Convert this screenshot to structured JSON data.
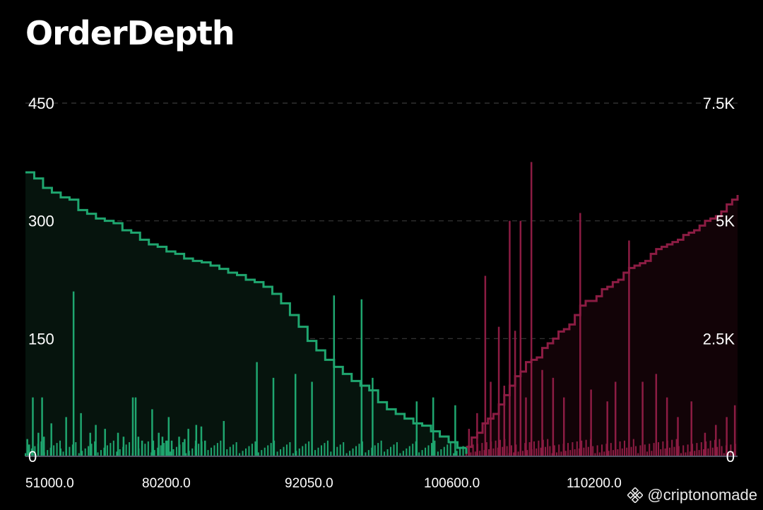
{
  "title": "OrderDepth",
  "watermark": {
    "handle": "@criptonomade",
    "icon": "binance-diamond-icon"
  },
  "chart_data": {
    "type": "bar+area",
    "title": "OrderDepth",
    "left_axis": {
      "ticks": [
        0,
        150,
        300,
        450
      ],
      "labels": [
        "0",
        "150",
        "300",
        "450"
      ],
      "range": [
        0,
        450
      ]
    },
    "right_axis": {
      "ticks": [
        0,
        2500,
        5000,
        7500
      ],
      "labels": [
        "0",
        "2.5K",
        "5K",
        "7.5K"
      ],
      "range": [
        0,
        7500
      ]
    },
    "x_axis": {
      "labels": [
        "51000.0",
        "80200.0",
        "92050.0",
        "100600.0",
        "110200.0"
      ]
    },
    "grid": "horizontal-dashed",
    "colors": {
      "bid": "#1fa66f",
      "ask": "#8c1c43",
      "bid_fill": "#06140d",
      "ask_fill": "#120307",
      "grid": "#3a3a3a"
    },
    "series": [
      {
        "name": "bid-cumulative-depth",
        "side": "bid",
        "axis": "right",
        "points": [
          [
            0,
            6030
          ],
          [
            0.02,
            5900
          ],
          [
            0.04,
            5700
          ],
          [
            0.06,
            5600
          ],
          [
            0.08,
            5500
          ],
          [
            0.1,
            5450
          ],
          [
            0.12,
            5230
          ],
          [
            0.14,
            5150
          ],
          [
            0.16,
            5050
          ],
          [
            0.18,
            5000
          ],
          [
            0.2,
            4950
          ],
          [
            0.22,
            4800
          ],
          [
            0.24,
            4750
          ],
          [
            0.26,
            4600
          ],
          [
            0.28,
            4500
          ],
          [
            0.3,
            4450
          ],
          [
            0.32,
            4350
          ],
          [
            0.34,
            4300
          ],
          [
            0.36,
            4200
          ],
          [
            0.38,
            4150
          ],
          [
            0.4,
            4120
          ],
          [
            0.42,
            4050
          ],
          [
            0.44,
            3980
          ],
          [
            0.46,
            3900
          ],
          [
            0.48,
            3850
          ],
          [
            0.5,
            3750
          ],
          [
            0.52,
            3700
          ],
          [
            0.54,
            3600
          ],
          [
            0.56,
            3450
          ],
          [
            0.58,
            3250
          ],
          [
            0.6,
            3000
          ],
          [
            0.62,
            2750
          ],
          [
            0.64,
            2450
          ],
          [
            0.66,
            2250
          ],
          [
            0.68,
            2050
          ],
          [
            0.7,
            1900
          ],
          [
            0.72,
            1750
          ],
          [
            0.74,
            1600
          ],
          [
            0.76,
            1500
          ],
          [
            0.78,
            1400
          ],
          [
            0.8,
            1150
          ],
          [
            0.82,
            1000
          ],
          [
            0.84,
            900
          ],
          [
            0.86,
            800
          ],
          [
            0.88,
            700
          ],
          [
            0.9,
            650
          ],
          [
            0.92,
            530
          ],
          [
            0.94,
            420
          ],
          [
            0.96,
            300
          ],
          [
            0.98,
            180
          ],
          [
            1.0,
            50
          ]
        ]
      },
      {
        "name": "ask-cumulative-depth",
        "side": "ask",
        "axis": "right",
        "points": [
          [
            0,
            200
          ],
          [
            0.02,
            400
          ],
          [
            0.04,
            500
          ],
          [
            0.06,
            700
          ],
          [
            0.08,
            800
          ],
          [
            0.1,
            900
          ],
          [
            0.12,
            1100
          ],
          [
            0.14,
            1300
          ],
          [
            0.16,
            1500
          ],
          [
            0.18,
            1700
          ],
          [
            0.2,
            1800
          ],
          [
            0.22,
            2000
          ],
          [
            0.24,
            2050
          ],
          [
            0.26,
            2100
          ],
          [
            0.28,
            2300
          ],
          [
            0.3,
            2400
          ],
          [
            0.32,
            2500
          ],
          [
            0.34,
            2650
          ],
          [
            0.36,
            2700
          ],
          [
            0.38,
            2800
          ],
          [
            0.4,
            3000
          ],
          [
            0.42,
            3200
          ],
          [
            0.44,
            3300
          ],
          [
            0.46,
            3300
          ],
          [
            0.48,
            3400
          ],
          [
            0.5,
            3550
          ],
          [
            0.52,
            3600
          ],
          [
            0.54,
            3700
          ],
          [
            0.56,
            3750
          ],
          [
            0.58,
            3900
          ],
          [
            0.6,
            4000
          ],
          [
            0.62,
            4050
          ],
          [
            0.64,
            4100
          ],
          [
            0.66,
            4150
          ],
          [
            0.68,
            4300
          ],
          [
            0.7,
            4400
          ],
          [
            0.72,
            4450
          ],
          [
            0.74,
            4500
          ],
          [
            0.76,
            4550
          ],
          [
            0.78,
            4600
          ],
          [
            0.8,
            4700
          ],
          [
            0.82,
            4750
          ],
          [
            0.84,
            4800
          ],
          [
            0.86,
            4900
          ],
          [
            0.88,
            5000
          ],
          [
            0.9,
            5050
          ],
          [
            0.92,
            5100
          ],
          [
            0.94,
            5200
          ],
          [
            0.96,
            5350
          ],
          [
            0.98,
            5450
          ],
          [
            1.0,
            5550
          ]
        ]
      },
      {
        "name": "bid-order-size",
        "side": "bid",
        "axis": "left",
        "spikes": [
          [
            0.01,
            22
          ],
          [
            0.02,
            15
          ],
          [
            0.04,
            75
          ],
          [
            0.07,
            30
          ],
          [
            0.09,
            75
          ],
          [
            0.1,
            25
          ],
          [
            0.14,
            42
          ],
          [
            0.19,
            10
          ],
          [
            0.22,
            50
          ],
          [
            0.26,
            210
          ],
          [
            0.3,
            55
          ],
          [
            0.35,
            30
          ],
          [
            0.38,
            40
          ],
          [
            0.43,
            35
          ],
          [
            0.5,
            30
          ],
          [
            0.53,
            25
          ],
          [
            0.58,
            75
          ],
          [
            0.61,
            25
          ],
          [
            0.63,
            20
          ],
          [
            0.69,
            20
          ],
          [
            0.72,
            30
          ],
          [
            0.74,
            25
          ],
          [
            0.76,
            20
          ],
          [
            0.79,
            20
          ],
          [
            0.83,
            25
          ],
          [
            0.86,
            22
          ],
          [
            0.88,
            35
          ],
          [
            0.92,
            20
          ],
          [
            0.95,
            38
          ],
          [
            0.97,
            20
          ]
        ],
        "spikes_far": [
          [
            0.04,
            75
          ],
          [
            0.07,
            60
          ],
          [
            0.1,
            50
          ],
          [
            0.15,
            40
          ],
          [
            0.2,
            45
          ],
          [
            0.26,
            120
          ],
          [
            0.29,
            100
          ],
          [
            0.33,
            105
          ],
          [
            0.36,
            95
          ],
          [
            0.4,
            205
          ],
          [
            0.45,
            200
          ],
          [
            0.47,
            100
          ],
          [
            0.55,
            70
          ],
          [
            0.58,
            75
          ],
          [
            0.62,
            65
          ]
        ]
      },
      {
        "name": "ask-order-size",
        "side": "ask",
        "axis": "left",
        "spikes": [
          [
            0.01,
            35
          ],
          [
            0.04,
            55
          ],
          [
            0.07,
            230
          ],
          [
            0.09,
            95
          ],
          [
            0.12,
            165
          ],
          [
            0.14,
            90
          ],
          [
            0.16,
            300
          ],
          [
            0.18,
            160
          ],
          [
            0.2,
            300
          ],
          [
            0.22,
            75
          ],
          [
            0.24,
            375
          ],
          [
            0.28,
            110
          ],
          [
            0.32,
            100
          ],
          [
            0.36,
            75
          ],
          [
            0.42,
            310
          ],
          [
            0.46,
            85
          ],
          [
            0.52,
            70
          ],
          [
            0.55,
            95
          ],
          [
            0.6,
            275
          ],
          [
            0.65,
            95
          ],
          [
            0.7,
            105
          ],
          [
            0.74,
            75
          ],
          [
            0.78,
            50
          ],
          [
            0.83,
            70
          ],
          [
            0.88,
            30
          ],
          [
            0.92,
            40
          ],
          [
            0.96,
            50
          ],
          [
            0.99,
            65
          ]
        ]
      }
    ]
  }
}
